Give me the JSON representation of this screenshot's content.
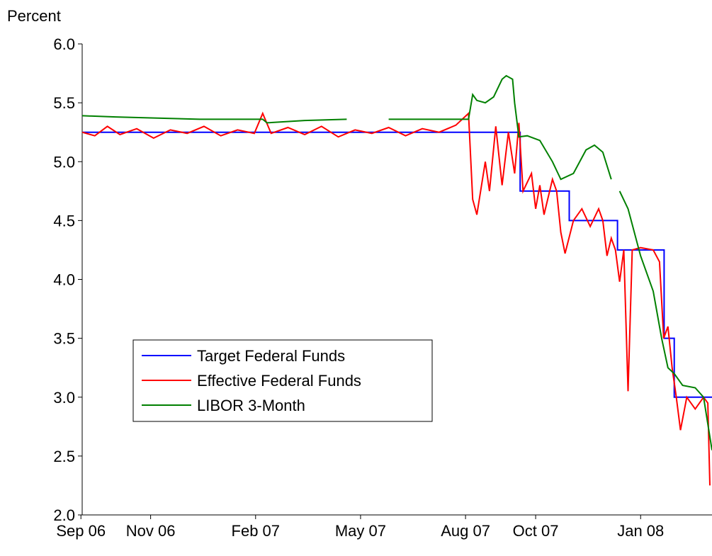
{
  "chart_data": {
    "type": "line",
    "y_label": "Percent",
    "ylim": [
      2.0,
      6.0
    ],
    "yticks": [
      {
        "value": 2,
        "label": "2.0"
      },
      2.5,
      {
        "value": 3,
        "label": "3.0"
      },
      3.5,
      {
        "value": 4,
        "label": "4.0"
      },
      4.5,
      {
        "value": 5,
        "label": "5.0"
      },
      5.5,
      {
        "value": 6,
        "label": "6.0"
      }
    ],
    "xlim": [
      2006.67,
      2008.17
    ],
    "xticks": [
      {
        "value": 2006.667,
        "label": "Sep 06"
      },
      {
        "value": 2006.833,
        "label": "Nov 06"
      },
      {
        "value": 2007.083,
        "label": "Feb 07"
      },
      {
        "value": 2007.333,
        "label": "May 07"
      },
      {
        "value": 2007.583,
        "label": "Aug 07"
      },
      {
        "value": 2007.75,
        "label": "Oct 07"
      },
      {
        "value": 2008.0,
        "label": "Jan 08"
      }
    ],
    "grid": false,
    "legend": "lower-left",
    "series": [
      {
        "name": "Target Federal Funds",
        "color": "#0000ff",
        "x": [
          2006.67,
          2007.713,
          2007.713,
          2007.83,
          2007.83,
          2007.945,
          2007.945,
          2008.056,
          2008.056,
          2008.08,
          2008.08,
          2008.17
        ],
        "values": [
          5.25,
          5.25,
          4.75,
          4.75,
          4.5,
          4.5,
          4.25,
          4.25,
          3.5,
          3.5,
          3.0,
          3.0
        ]
      },
      {
        "name": "Effective Federal Funds",
        "color": "#ff0000",
        "x": [
          2006.67,
          2006.7,
          2006.73,
          2006.76,
          2006.8,
          2006.84,
          2006.88,
          2006.92,
          2006.96,
          2007.0,
          2007.04,
          2007.08,
          2007.1,
          2007.12,
          2007.16,
          2007.2,
          2007.24,
          2007.28,
          2007.32,
          2007.36,
          2007.4,
          2007.44,
          2007.48,
          2007.52,
          2007.56,
          2007.59,
          2007.6,
          2007.61,
          2007.63,
          2007.64,
          2007.655,
          2007.67,
          2007.685,
          2007.7,
          2007.71,
          2007.72,
          2007.74,
          2007.75,
          2007.76,
          2007.77,
          2007.79,
          2007.8,
          2007.81,
          2007.82,
          2007.84,
          2007.86,
          2007.88,
          2007.9,
          2007.91,
          2007.92,
          2007.93,
          2007.94,
          2007.95,
          2007.96,
          2007.97,
          2007.98,
          2008.0,
          2008.03,
          2008.045,
          2008.055,
          2008.065,
          2008.075,
          2008.085,
          2008.095,
          2008.11,
          2008.13,
          2008.15,
          2008.16,
          2008.165
        ],
        "values": [
          5.25,
          5.22,
          5.3,
          5.23,
          5.28,
          5.2,
          5.27,
          5.24,
          5.3,
          5.22,
          5.27,
          5.24,
          5.41,
          5.24,
          5.29,
          5.23,
          5.3,
          5.21,
          5.27,
          5.24,
          5.29,
          5.22,
          5.28,
          5.25,
          5.31,
          5.41,
          4.68,
          4.55,
          5.0,
          4.75,
          5.3,
          4.8,
          5.25,
          4.9,
          5.33,
          4.75,
          4.9,
          4.6,
          4.8,
          4.55,
          4.85,
          4.75,
          4.4,
          4.22,
          4.5,
          4.6,
          4.45,
          4.6,
          4.5,
          4.2,
          4.35,
          4.25,
          3.98,
          4.25,
          3.05,
          4.25,
          4.27,
          4.25,
          4.15,
          3.5,
          3.6,
          3.25,
          3.0,
          2.72,
          3.0,
          2.9,
          3.0,
          2.95,
          2.25
        ]
      },
      {
        "name": "LIBOR 3-Month",
        "color": "#008000",
        "x": [
          2006.67,
          2006.75,
          2006.85,
          2006.95,
          2007.0,
          2007.1,
          2007.11,
          2007.2,
          2007.3,
          2007.31,
          2007.4,
          2007.5,
          2007.59,
          2007.6,
          2007.61,
          2007.63,
          2007.65,
          2007.67,
          2007.68,
          2007.695,
          2007.7,
          2007.71,
          2007.73,
          2007.76,
          2007.79,
          2007.81,
          2007.84,
          2007.87,
          2007.89,
          2007.91,
          2007.93,
          2007.94,
          2007.95,
          2007.97,
          2008.0,
          2008.03,
          2008.05,
          2008.065,
          2008.08,
          2008.1,
          2008.13,
          2008.15,
          2008.17
        ],
        "values": [
          5.39,
          5.38,
          5.37,
          5.36,
          5.36,
          5.36,
          5.33,
          5.35,
          5.36,
          null,
          5.36,
          5.36,
          5.36,
          5.57,
          5.52,
          5.5,
          5.55,
          5.7,
          5.73,
          5.7,
          5.5,
          5.21,
          5.22,
          5.18,
          5.0,
          4.85,
          4.9,
          5.1,
          5.14,
          5.08,
          4.85,
          null,
          4.75,
          4.6,
          4.2,
          3.9,
          3.5,
          3.25,
          3.2,
          3.1,
          3.08,
          3.0,
          2.55
        ]
      }
    ]
  }
}
